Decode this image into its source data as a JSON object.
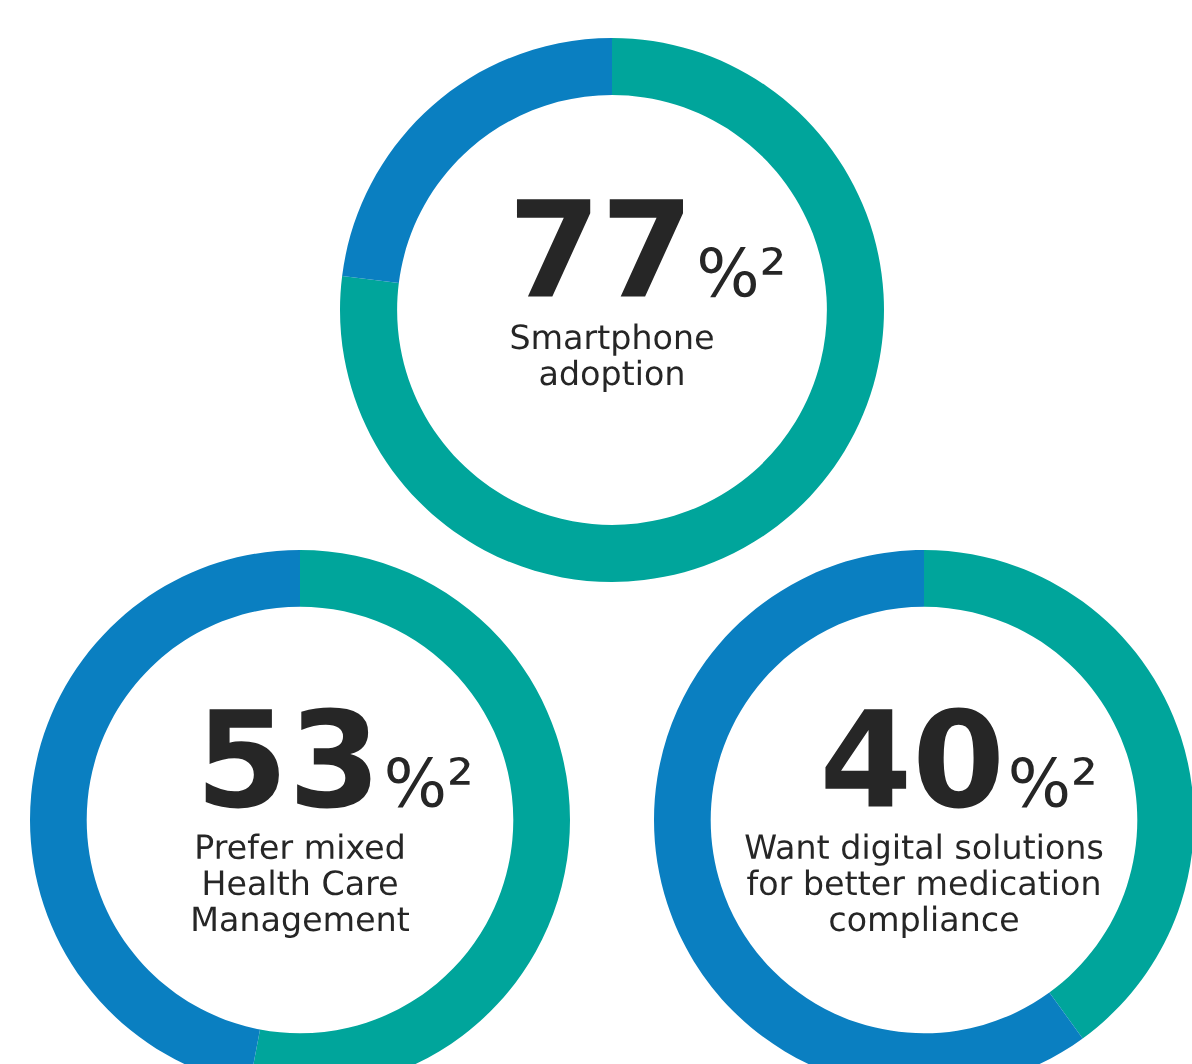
{
  "chart_data": [
    {
      "type": "donut",
      "categories": [
        null,
        null
      ],
      "values": [
        77,
        23
      ],
      "colors": [
        "#00a59b",
        "#0a7fc1"
      ],
      "annotations": [
        "77%²",
        "Smartphone\nadoption"
      ]
    },
    {
      "type": "donut",
      "categories": [
        null,
        null
      ],
      "values": [
        53,
        47
      ],
      "colors": [
        "#00a59b",
        "#0a7fc1"
      ],
      "annotations": [
        "53%²",
        "Prefer mixed\nHealth Care\nManagement"
      ]
    },
    {
      "type": "donut",
      "categories": [
        null,
        null
      ],
      "values": [
        40,
        60
      ],
      "colors": [
        "#00a59b",
        "#0a7fc1"
      ],
      "annotations": [
        "40%²",
        "Want digital solutions\nfor better medication\ncompliance"
      ]
    }
  ]
}
